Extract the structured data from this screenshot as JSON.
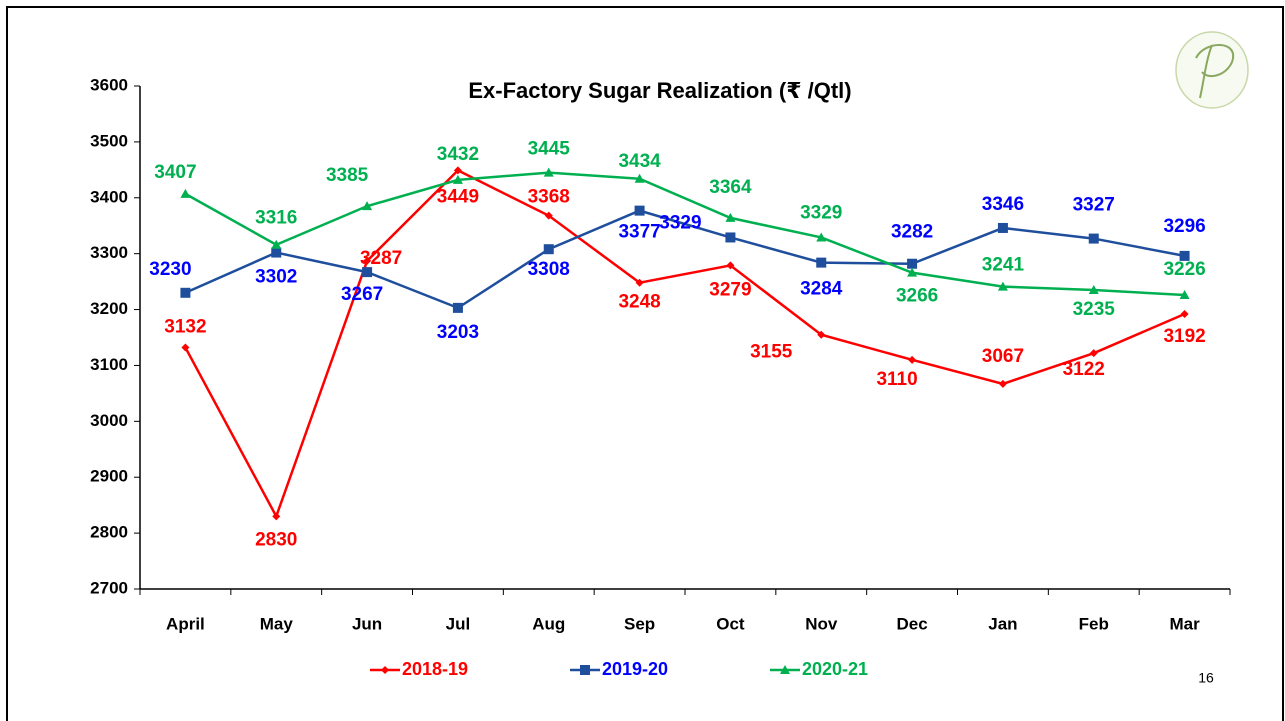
{
  "chart_data": {
    "type": "line",
    "title": "Ex-Factory Sugar Realization (₹ /Qtl)",
    "categories": [
      "April",
      "May",
      "Jun",
      "Jul",
      "Aug",
      "Sep",
      "Oct",
      "Nov",
      "Dec",
      "Jan",
      "Feb",
      "Mar"
    ],
    "series": [
      {
        "name": "2018-19",
        "color": "#ff0000",
        "marker": "diamond",
        "values": [
          3132,
          2830,
          3287,
          3449,
          3368,
          3248,
          3279,
          3155,
          3110,
          3067,
          3122,
          3192
        ]
      },
      {
        "name": "2019-20",
        "color": "#1f4e9c",
        "label_color": "#0000ff",
        "marker": "square",
        "values": [
          3230,
          3302,
          3267,
          3203,
          3308,
          3377,
          3329,
          3284,
          3282,
          3346,
          3327,
          3296
        ]
      },
      {
        "name": "2020-21",
        "color": "#00b050",
        "marker": "triangle",
        "values": [
          3407,
          3316,
          3385,
          3432,
          3445,
          3434,
          3364,
          3329,
          3266,
          3241,
          3235,
          3226
        ]
      }
    ],
    "ylim": [
      2700,
      3600
    ],
    "yticks": [
      2700,
      2800,
      2900,
      3000,
      3100,
      3200,
      3300,
      3400,
      3500,
      3600
    ],
    "grid": false,
    "legend": "bottom",
    "page_number": "16"
  }
}
